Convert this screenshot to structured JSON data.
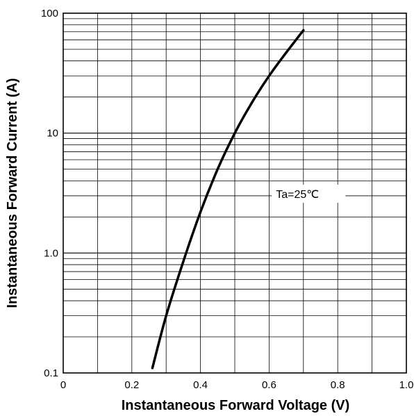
{
  "chart_data": {
    "type": "line",
    "title": "",
    "xlabel": "Instantaneous Forward Voltage (V)",
    "ylabel": "Instantaneous Forward Current (A)",
    "xlim": [
      0,
      1.0
    ],
    "ylim": [
      0.1,
      100
    ],
    "y_scale": "log",
    "grid": true,
    "x_ticks": [
      {
        "value": 0,
        "label": "0"
      },
      {
        "value": 0.2,
        "label": "0.2"
      },
      {
        "value": 0.4,
        "label": "0.4"
      },
      {
        "value": 0.6,
        "label": "0.6"
      },
      {
        "value": 0.8,
        "label": "0.8"
      },
      {
        "value": 1.0,
        "label": "1.0"
      }
    ],
    "y_ticks": [
      {
        "value": 0.1,
        "label": "0.1"
      },
      {
        "value": 1,
        "label": "1.0"
      },
      {
        "value": 10,
        "label": "10"
      },
      {
        "value": 100,
        "label": "100"
      }
    ],
    "annotations": [
      {
        "text": "Ta=25℃",
        "x": 0.62,
        "y": 3.0
      }
    ],
    "series": [
      {
        "color": "#000000",
        "x": [
          0.26,
          0.3,
          0.35,
          0.4,
          0.45,
          0.5,
          0.55,
          0.6,
          0.65,
          0.7
        ],
        "y": [
          0.11,
          0.3,
          0.85,
          2.2,
          5.0,
          10.0,
          18.0,
          30.0,
          47.0,
          72.0
        ]
      }
    ]
  }
}
